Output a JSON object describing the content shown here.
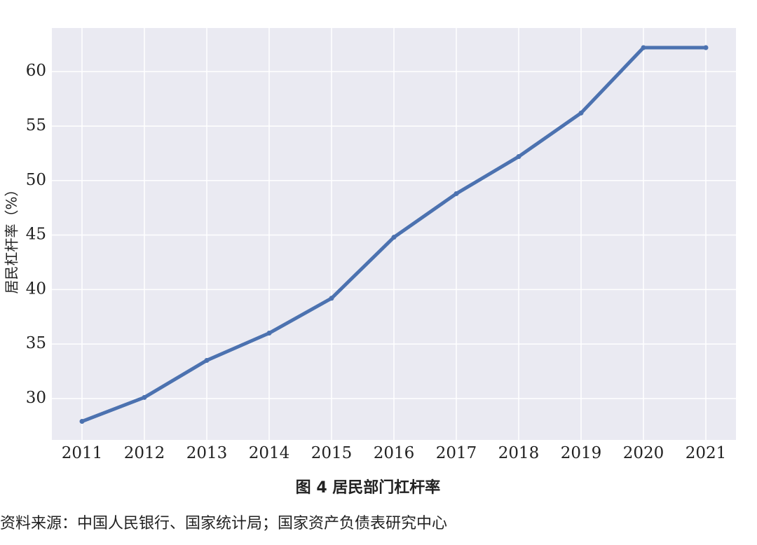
{
  "chart_data": {
    "type": "line",
    "title": "图 4 居民部门杠杆率",
    "source": "资料来源：中国人民银行、国家统计局；国家资产负债表研究中心",
    "y_label": "居民杠杆率（%）",
    "categories": [
      "2011",
      "2012",
      "2013",
      "2014",
      "2015",
      "2016",
      "2017",
      "2018",
      "2019",
      "2020",
      "2021"
    ],
    "values": [
      27.9,
      30.1,
      33.5,
      36.0,
      39.2,
      44.8,
      48.8,
      52.2,
      56.2,
      62.2,
      62.2
    ],
    "color": "#4c72b0",
    "ylim": [
      26.2,
      64
    ],
    "yticks": [
      30,
      35,
      40,
      45,
      50,
      55,
      60
    ],
    "grid": true
  }
}
